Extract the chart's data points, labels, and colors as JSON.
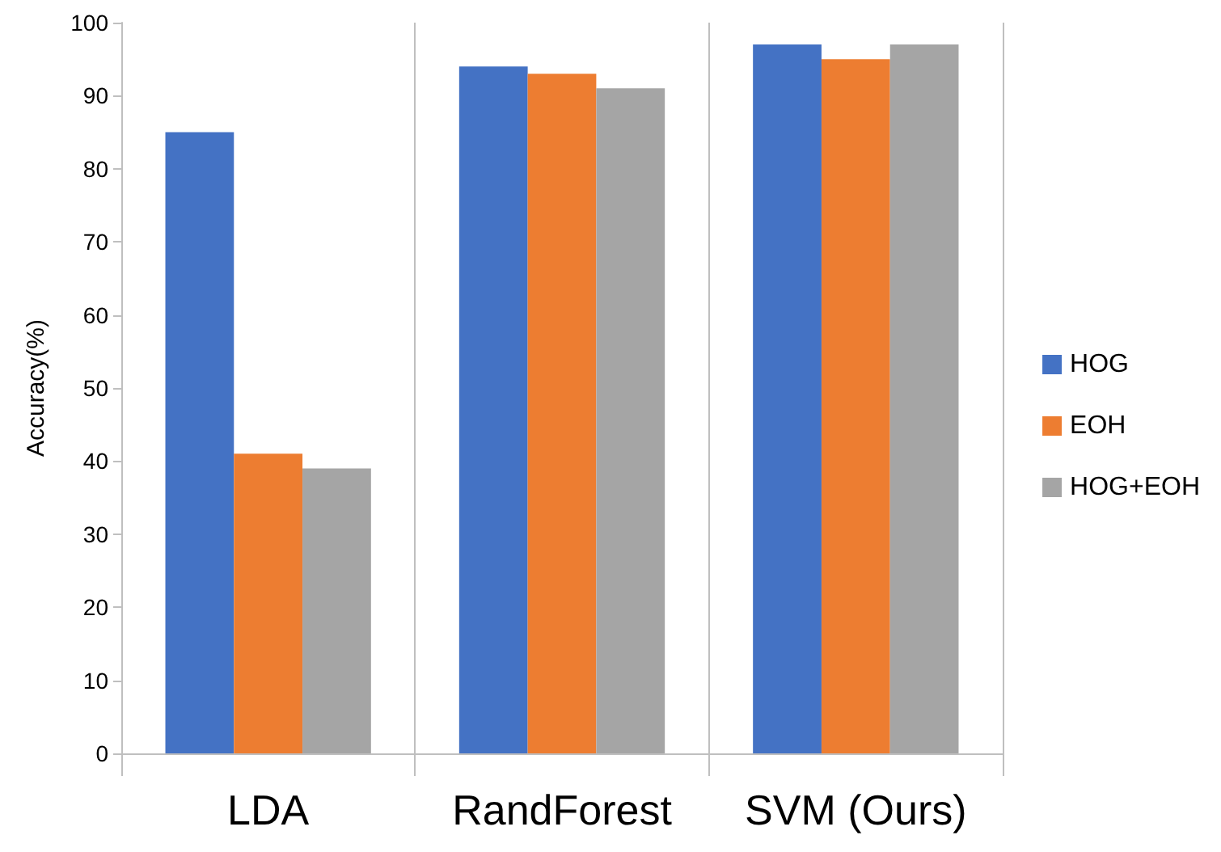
{
  "chart_data": {
    "type": "bar",
    "ylabel": "Accuracy(%)",
    "categories": [
      "LDA",
      "RandForest",
      "SVM (Ours)"
    ],
    "series": [
      {
        "name": "HOG",
        "color": "#4472c4",
        "values": [
          85,
          94,
          97
        ]
      },
      {
        "name": "EOH",
        "color": "#ed7d31",
        "values": [
          41,
          93,
          95
        ]
      },
      {
        "name": "HOG+EOH",
        "color": "#a5a5a5",
        "values": [
          39,
          91,
          97
        ]
      }
    ],
    "ylim": [
      0,
      100
    ],
    "yticks": [
      0,
      10,
      20,
      30,
      40,
      50,
      60,
      70,
      80,
      90,
      100
    ],
    "grid": "x",
    "legend": "right"
  }
}
